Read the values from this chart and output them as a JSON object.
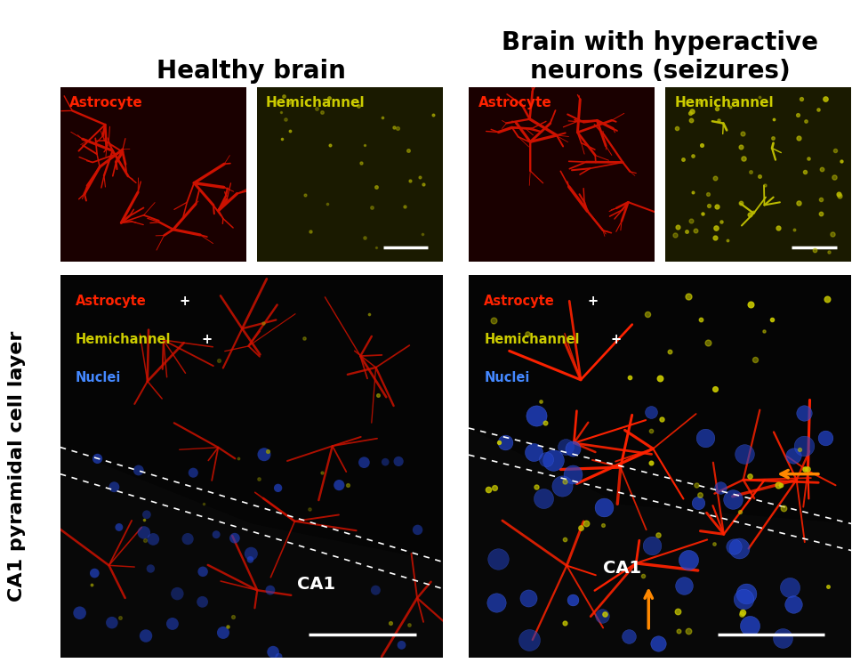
{
  "fig_width": 9.67,
  "fig_height": 7.54,
  "background_color": "#ffffff",
  "title_healthy": "Healthy brain",
  "title_seizure": "Brain with hyperactive\nneurons (seizures)",
  "title_fontsize": 20,
  "title_fontweight": "bold",
  "ylabel": "CA1 pyramidal cell layer",
  "ylabel_fontsize": 16,
  "ylabel_fontweight": "bold",
  "panel_labels": {
    "top_left_1": "Astrocyte",
    "top_left_2": "Hemichannel",
    "top_right_1": "Astrocyte",
    "top_right_2": "Hemichannel"
  },
  "panel_label_colors": {
    "astrocyte": "#ff2200",
    "hemichannel": "#cccc00"
  },
  "bottom_labels_healthy": [
    {
      "text": "Astrocyte",
      "color": "#ff2200"
    },
    {
      "text": "+",
      "color": "#ffffff"
    },
    {
      "text": "Hemichannel",
      "color": "#cccc00"
    },
    {
      "text": "+",
      "color": "#ffffff"
    },
    {
      "text": "Nuclei",
      "color": "#4488ff"
    }
  ],
  "bottom_labels_seizure": [
    {
      "text": "Astrocyte",
      "color": "#ff2200"
    },
    {
      "text": "+",
      "color": "#ffffff"
    },
    {
      "text": "Hemichannel",
      "color": "#cccc00"
    },
    {
      "text": "+",
      "color": "#ffffff"
    },
    {
      "text": "Nuclei",
      "color": "#4488ff"
    }
  ],
  "ca1_label_color": "#ffffff",
  "ca1_label_fontsize": 16,
  "arrow_color": "#ff8800",
  "scale_bar_color": "#ffffff",
  "panel_bg_colors": {
    "top_left_1": "#1a0000",
    "top_left_2": "#1a1a00",
    "top_right_1": "#1a0000",
    "top_right_2": "#1a1a00",
    "bottom_left": "#050505",
    "bottom_right": "#050505"
  }
}
